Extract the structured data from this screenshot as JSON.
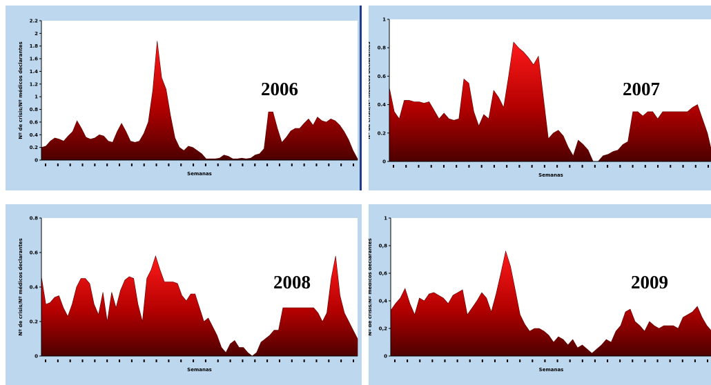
{
  "chart_data": [
    {
      "type": "area",
      "title": "2006",
      "xlabel": "Semanas",
      "ylabel": "Nº de crisis/Nº médicos declarantes",
      "ylim": [
        0,
        2.2
      ],
      "yticks": [
        "0",
        "0.2",
        "0.4",
        "0.6",
        "0.8",
        "1",
        "1.2",
        "1.4",
        "1.6",
        "1.8",
        "2",
        "2.2"
      ],
      "grid": false,
      "color": "#8b0000",
      "values": [
        0.2,
        0.22,
        0.3,
        0.35,
        0.33,
        0.3,
        0.38,
        0.45,
        0.62,
        0.5,
        0.36,
        0.33,
        0.35,
        0.4,
        0.38,
        0.3,
        0.28,
        0.45,
        0.58,
        0.45,
        0.3,
        0.28,
        0.3,
        0.42,
        0.6,
        1.1,
        1.88,
        1.3,
        1.12,
        0.7,
        0.35,
        0.2,
        0.15,
        0.22,
        0.2,
        0.15,
        0.1,
        0.02,
        0.02,
        0.02,
        0.03,
        0.08,
        0.06,
        0.02,
        0.02,
        0.03,
        0.02,
        0.03,
        0.08,
        0.1,
        0.18,
        0.76,
        0.76,
        0.5,
        0.28,
        0.36,
        0.46,
        0.5,
        0.5,
        0.58,
        0.65,
        0.55,
        0.68,
        0.62,
        0.6,
        0.65,
        0.62,
        0.55,
        0.45,
        0.32,
        0.15,
        0.02
      ]
    },
    {
      "type": "area",
      "title": "2007",
      "xlabel": "Semanas",
      "ylabel": "Nº de crisis/Nº médicos declarantes",
      "ylim": [
        0,
        1
      ],
      "yticks": [
        "0",
        "0.2",
        "0.4",
        "0.6",
        "0.8",
        "1"
      ],
      "grid": false,
      "color": "#8b0000",
      "values": [
        0.52,
        0.35,
        0.3,
        0.43,
        0.43,
        0.42,
        0.42,
        0.41,
        0.42,
        0.36,
        0.3,
        0.34,
        0.3,
        0.29,
        0.3,
        0.58,
        0.55,
        0.35,
        0.25,
        0.33,
        0.3,
        0.5,
        0.45,
        0.38,
        0.6,
        0.84,
        0.8,
        0.77,
        0.73,
        0.68,
        0.74,
        0.45,
        0.16,
        0.2,
        0.22,
        0.18,
        0.1,
        0.04,
        0.15,
        0.12,
        0.08,
        0.0,
        0.0,
        0.04,
        0.05,
        0.07,
        0.08,
        0.12,
        0.14,
        0.35,
        0.35,
        0.32,
        0.35,
        0.35,
        0.3,
        0.35,
        0.35,
        0.35,
        0.35,
        0.35,
        0.35,
        0.38,
        0.4,
        0.3,
        0.2,
        0.05
      ]
    },
    {
      "type": "area",
      "title": "2008",
      "xlabel": "Semanas",
      "ylabel": "Nº de crisis/Nº médicos declarantes",
      "ylim": [
        0,
        0.8
      ],
      "yticks": [
        "0",
        "0.2",
        "0.4",
        "0.6",
        "0.8"
      ],
      "grid": false,
      "color": "#8b0000",
      "values": [
        0.46,
        0.3,
        0.31,
        0.34,
        0.35,
        0.28,
        0.23,
        0.3,
        0.4,
        0.45,
        0.45,
        0.42,
        0.3,
        0.24,
        0.37,
        0.2,
        0.37,
        0.28,
        0.38,
        0.44,
        0.46,
        0.45,
        0.3,
        0.2,
        0.45,
        0.5,
        0.58,
        0.5,
        0.43,
        0.43,
        0.43,
        0.42,
        0.35,
        0.32,
        0.36,
        0.36,
        0.28,
        0.2,
        0.22,
        0.17,
        0.12,
        0.05,
        0.02,
        0.07,
        0.09,
        0.05,
        0.05,
        0.02,
        0.0,
        0.02,
        0.08,
        0.1,
        0.12,
        0.15,
        0.15,
        0.28,
        0.28,
        0.28,
        0.28,
        0.28,
        0.28,
        0.28,
        0.28,
        0.25,
        0.2,
        0.25,
        0.45,
        0.58,
        0.35,
        0.25,
        0.2,
        0.15,
        0.1
      ]
    },
    {
      "type": "area",
      "title": "2009",
      "xlabel": "Semanas",
      "ylabel": "Nº de crisis/Nº médicos declarantes",
      "ylim": [
        0,
        1
      ],
      "yticks": [
        "0",
        "0,2",
        "0,4",
        "0,6",
        "0,8",
        "1"
      ],
      "grid": false,
      "color": "#8b0000",
      "values": [
        0.33,
        0.38,
        0.42,
        0.49,
        0.38,
        0.3,
        0.42,
        0.4,
        0.45,
        0.46,
        0.44,
        0.42,
        0.38,
        0.44,
        0.46,
        0.48,
        0.3,
        0.35,
        0.4,
        0.46,
        0.42,
        0.32,
        0.45,
        0.6,
        0.76,
        0.65,
        0.48,
        0.3,
        0.23,
        0.18,
        0.2,
        0.2,
        0.18,
        0.15,
        0.1,
        0.14,
        0.12,
        0.08,
        0.12,
        0.06,
        0.08,
        0.05,
        0.02,
        0.05,
        0.08,
        0.12,
        0.1,
        0.18,
        0.22,
        0.32,
        0.34,
        0.25,
        0.22,
        0.18,
        0.25,
        0.22,
        0.2,
        0.22,
        0.22,
        0.22,
        0.2,
        0.28,
        0.3,
        0.32,
        0.36,
        0.28,
        0.22,
        0.18
      ]
    }
  ]
}
